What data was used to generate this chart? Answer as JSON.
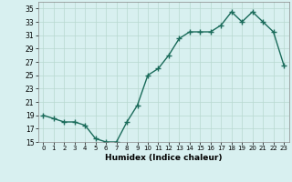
{
  "x": [
    0,
    1,
    2,
    3,
    4,
    5,
    6,
    7,
    8,
    9,
    10,
    11,
    12,
    13,
    14,
    15,
    16,
    17,
    18,
    19,
    20,
    21,
    22,
    23
  ],
  "y": [
    19,
    18.5,
    18,
    18,
    17.5,
    15.5,
    15,
    15,
    18,
    20.5,
    25,
    26,
    28,
    30.5,
    31.5,
    31.5,
    31.5,
    32.5,
    34.5,
    33,
    34.5,
    33,
    31.5,
    26.5
  ],
  "xlabel": "Humidex (Indice chaleur)",
  "ylim": [
    15,
    36
  ],
  "xlim": [
    -0.5,
    23.5
  ],
  "yticks": [
    15,
    17,
    19,
    21,
    23,
    25,
    27,
    29,
    31,
    33,
    35
  ],
  "xtick_labels": [
    "0",
    "1",
    "2",
    "3",
    "4",
    "5",
    "6",
    "7",
    "8",
    "9",
    "10",
    "11",
    "12",
    "13",
    "14",
    "15",
    "16",
    "17",
    "18",
    "19",
    "20",
    "21",
    "22",
    "23"
  ],
  "line_color": "#1a6b5a",
  "marker": "+",
  "marker_size": 4,
  "bg_color": "#d8f0f0",
  "grid_color": "#b8d8d0",
  "line_width": 1.0
}
